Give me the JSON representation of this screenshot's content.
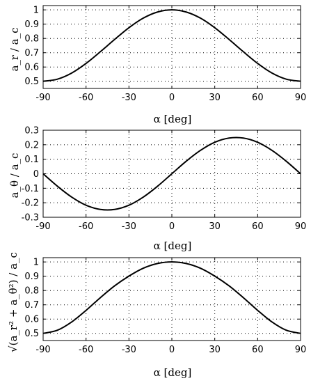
{
  "chart_data": [
    {
      "type": "line",
      "xlabel": "α [deg]",
      "ylabel": "a_r / a_c",
      "xlim": [
        -90,
        90
      ],
      "ylim": [
        0.45,
        1.03
      ],
      "xticks": [
        -90,
        -60,
        -30,
        0,
        30,
        60,
        90
      ],
      "yticks": [
        0.5,
        0.6,
        0.7,
        0.8,
        0.9,
        1.0
      ],
      "ytick_labels": [
        "0.5",
        "0.6",
        "0.7",
        "0.8",
        "0.9",
        "1"
      ],
      "grid": true,
      "series": [
        {
          "x": [
            -90,
            -80,
            -70,
            -60,
            -50,
            -40,
            -30,
            -20,
            -10,
            0,
            10,
            20,
            30,
            40,
            50,
            60,
            70,
            80,
            90
          ],
          "values": [
            0.5,
            0.515,
            0.558,
            0.625,
            0.707,
            0.793,
            0.875,
            0.942,
            0.985,
            1.0,
            0.985,
            0.942,
            0.875,
            0.793,
            0.707,
            0.625,
            0.558,
            0.515,
            0.5
          ]
        }
      ]
    },
    {
      "type": "line",
      "xlabel": "α [deg]",
      "ylabel": "a_θ / a_c",
      "xlim": [
        -90,
        90
      ],
      "ylim": [
        -0.3,
        0.3
      ],
      "xticks": [
        -90,
        -60,
        -30,
        0,
        30,
        60,
        90
      ],
      "yticks": [
        -0.3,
        -0.2,
        -0.1,
        0,
        0.1,
        0.2,
        0.3
      ],
      "ytick_labels": [
        "-0.3",
        "-0.2",
        "-0.1",
        "0",
        "0.1",
        "0.2",
        "0.3"
      ],
      "grid": true,
      "series": [
        {
          "x": [
            -90,
            -80,
            -70,
            -60,
            -50,
            -40,
            -30,
            -20,
            -10,
            0,
            10,
            20,
            30,
            40,
            50,
            60,
            70,
            80,
            90
          ],
          "values": [
            0.0,
            -0.086,
            -0.161,
            -0.217,
            -0.246,
            -0.246,
            -0.217,
            -0.161,
            -0.086,
            0.0,
            0.086,
            0.161,
            0.217,
            0.246,
            0.246,
            0.217,
            0.161,
            0.086,
            0.0
          ]
        }
      ]
    },
    {
      "type": "line",
      "xlabel": "α [deg]",
      "ylabel": "√(a_r² + a_θ²) / a_c",
      "xlim": [
        -90,
        90
      ],
      "ylim": [
        0.45,
        1.03
      ],
      "xticks": [
        -90,
        -60,
        -30,
        0,
        30,
        60,
        90
      ],
      "yticks": [
        0.5,
        0.6,
        0.7,
        0.8,
        0.9,
        1.0
      ],
      "ytick_labels": [
        "0.5",
        "0.6",
        "0.7",
        "0.8",
        "0.9",
        "1"
      ],
      "grid": true,
      "series": [
        {
          "x": [
            -90,
            -80,
            -70,
            -60,
            -50,
            -40,
            -30,
            -20,
            -10,
            0,
            10,
            20,
            30,
            40,
            50,
            60,
            70,
            80,
            90
          ],
          "values": [
            0.5,
            0.522,
            0.58,
            0.661,
            0.75,
            0.833,
            0.901,
            0.956,
            0.989,
            1.0,
            0.989,
            0.956,
            0.901,
            0.833,
            0.75,
            0.661,
            0.58,
            0.522,
            0.5
          ]
        }
      ]
    }
  ]
}
